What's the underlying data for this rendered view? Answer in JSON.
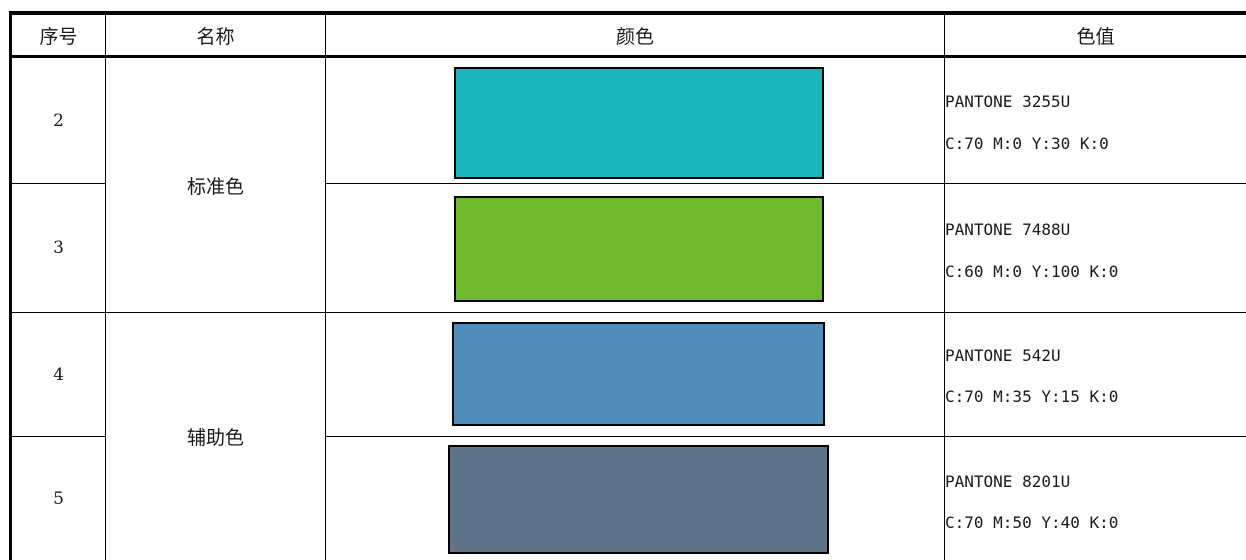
{
  "header": {
    "col_index": "序号",
    "col_name": "名称",
    "col_color": "颜色",
    "col_value": "色值"
  },
  "groups": [
    {
      "name": "标准色"
    },
    {
      "name": "辅助色"
    }
  ],
  "rows": [
    {
      "index": "2",
      "pantone": "PANTONE 3255U",
      "cmyk": "C:70 M:0 Y:30 K:0",
      "hex": "#1bb6bb"
    },
    {
      "index": "3",
      "pantone": "PANTONE 7488U",
      "cmyk": "C:60 M:0 Y:100 K:0",
      "hex": "#6fba2c"
    },
    {
      "index": "4",
      "pantone": "PANTONE 542U",
      "cmyk": "C:70 M:35 Y:15 K:0",
      "hex": "#4e8db9"
    },
    {
      "index": "5",
      "pantone": "PANTONE 8201U",
      "cmyk": "C:70 M:50 Y:40 K:0",
      "hex": "#5e7388"
    }
  ]
}
